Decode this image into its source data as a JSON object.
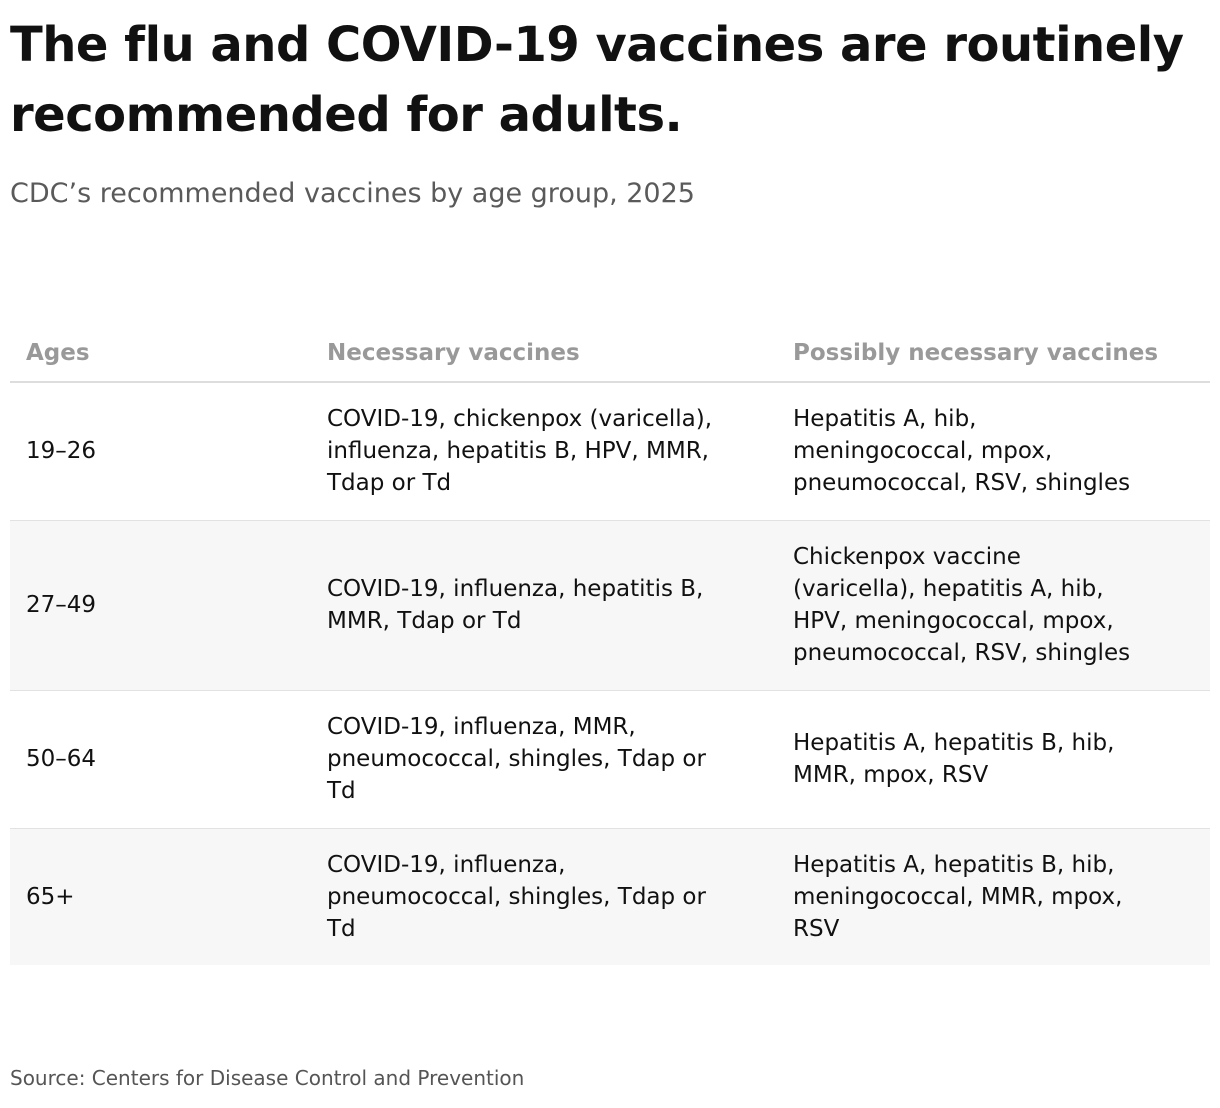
{
  "header": {
    "title": "The flu and COVID-19 vaccines are routinely recommended for adults.",
    "subtitle": "CDC’s recommended vaccines by age group, 2025"
  },
  "table": {
    "columns": [
      "Ages",
      "Necessary vaccines",
      "Possibly necessary vaccines"
    ],
    "rows": [
      [
        "19–26",
        "COVID-19, chickenpox (varicella), influenza, hepatitis B, HPV, MMR, Tdap or Td",
        "Hepatitis A, hib, meningococcal, mpox, pneumococcal, RSV, shingles"
      ],
      [
        "27–49",
        "COVID-19, influenza, hepatitis B, MMR, Tdap or Td",
        "Chickenpox vaccine (varicella), hepatitis A, hib, HPV, meningococcal, mpox, pneumococcal, RSV, shingles"
      ],
      [
        "50–64",
        "COVID-19, influenza, MMR, pneumococcal, shingles, Tdap or Td",
        "Hepatitis A, hepatitis B, hib, MMR, mpox, RSV"
      ],
      [
        "65+",
        "COVID-19, influenza, pneumococcal, shingles, Tdap or Td",
        "Hepatitis A, hepatitis B, hib, meningococcal, MMR, mpox, RSV"
      ]
    ]
  },
  "source": "Source: Centers for Disease Control and Prevention"
}
